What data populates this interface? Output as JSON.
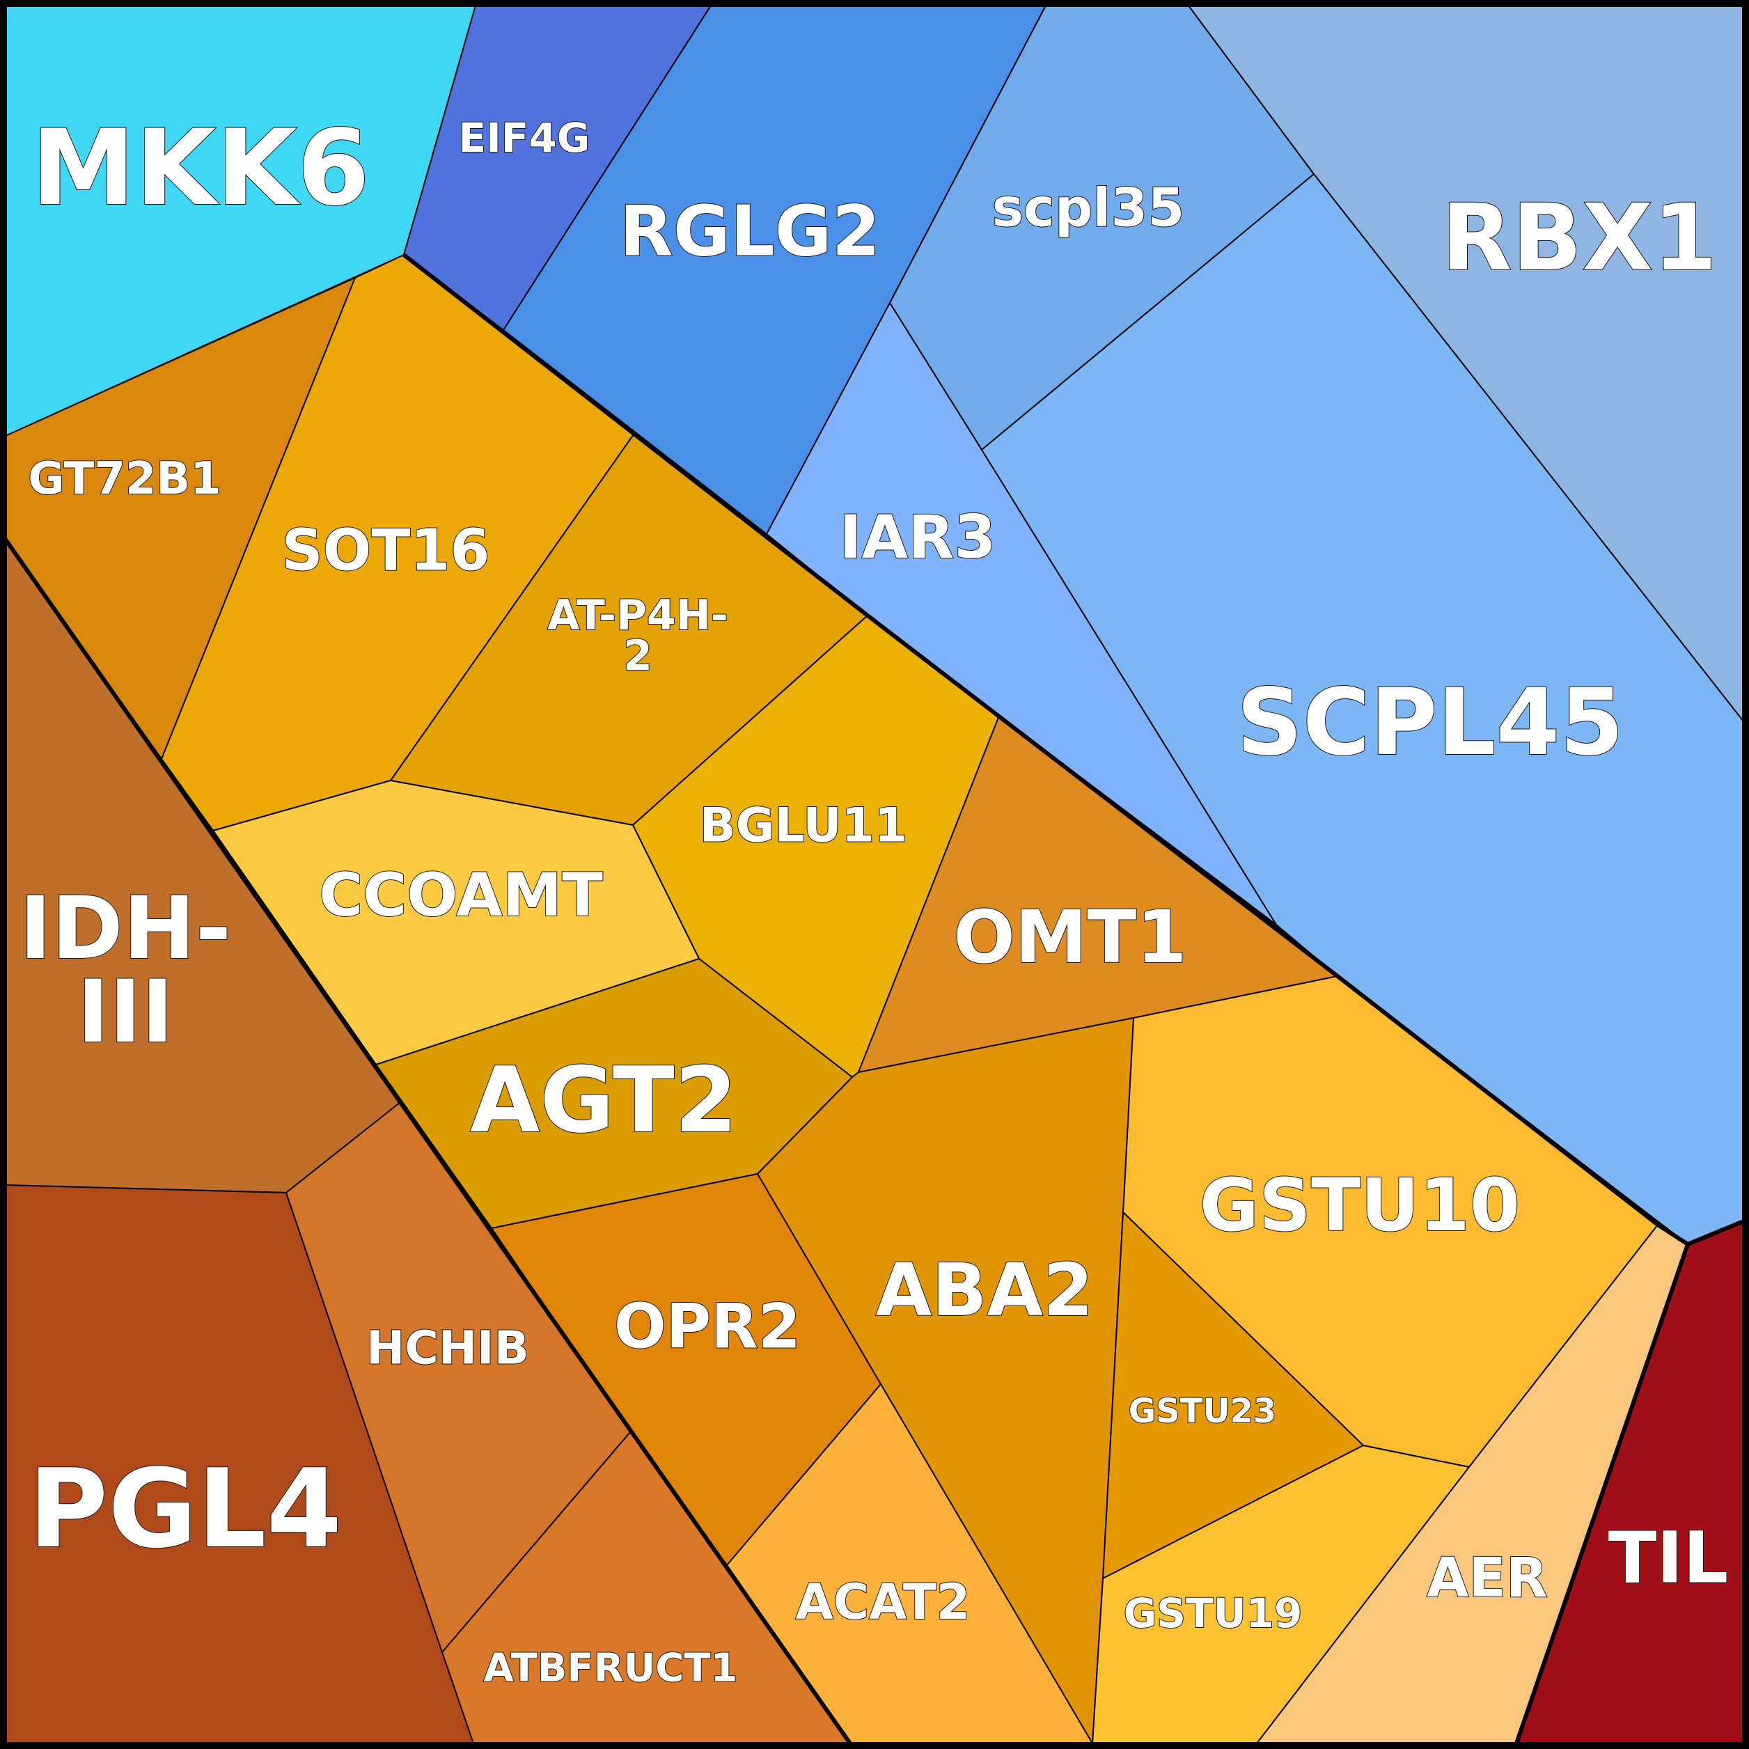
{
  "chart_data": {
    "type": "voronoi-treemap",
    "groups": [
      {
        "name": "",
        "color": "#4a90e2"
      },
      {
        "name": "",
        "color": "#e8a000"
      },
      {
        "name": "",
        "color": "#c06c2b"
      },
      {
        "name": "",
        "color": "#a00f18"
      }
    ],
    "cells": [
      {
        "id": "mkk6",
        "label": "MKK6",
        "color": "#3fd7f3",
        "group": 0
      },
      {
        "id": "eif4g",
        "label": "EIF4G",
        "color": "#4f72dd",
        "group": 0
      },
      {
        "id": "rglg2",
        "label": "RGLG2",
        "color": "#4a90e8",
        "group": 0
      },
      {
        "id": "scpl35",
        "label": "scpl35",
        "color": "#71abeb",
        "group": 0
      },
      {
        "id": "rbx1",
        "label": "RBX1",
        "color": "#8fb5e3",
        "group": 0
      },
      {
        "id": "iar3",
        "label": "IAR3",
        "color": "#80b3fb",
        "group": 0
      },
      {
        "id": "scpl45",
        "label": "SCPL45",
        "color": "#7db6f4",
        "group": 0
      },
      {
        "id": "gt72b1",
        "label": "GT72B1",
        "color": "#d9870d",
        "group": 1
      },
      {
        "id": "sot16",
        "label": "SOT16",
        "color": "#eca806",
        "group": 1
      },
      {
        "id": "atp4h2",
        "label": [
          "AT-P4H-",
          "2"
        ],
        "color": "#e4a104",
        "group": 1
      },
      {
        "id": "bglu11",
        "label": "BGLU11",
        "color": "#ebb105",
        "group": 1
      },
      {
        "id": "ccoamt",
        "label": "CCOAMT",
        "color": "#fdca44",
        "group": 1
      },
      {
        "id": "agt2",
        "label": "AGT2",
        "color": "#db9c00",
        "group": 1
      },
      {
        "id": "omt1",
        "label": "OMT1",
        "color": "#de8b22",
        "group": 1
      },
      {
        "id": "gstu10",
        "label": "GSTU10",
        "color": "#fdbb31",
        "group": 1
      },
      {
        "id": "aba2",
        "label": "ABA2",
        "color": "#e19506",
        "group": 1
      },
      {
        "id": "opr2",
        "label": "OPR2",
        "color": "#e18508",
        "group": 1
      },
      {
        "id": "gstu23",
        "label": "GSTU23",
        "color": "#e49902",
        "group": 1
      },
      {
        "id": "gstu19",
        "label": "GSTU19",
        "color": "#fec132",
        "group": 1
      },
      {
        "id": "acat2",
        "label": "ACAT2",
        "color": "#feb13a",
        "group": 1
      },
      {
        "id": "aer",
        "label": "AER",
        "color": "#fac77f",
        "group": 1
      },
      {
        "id": "idh3",
        "label": [
          "IDH-",
          "III"
        ],
        "color": "#bf6f2b",
        "group": 2
      },
      {
        "id": "pgl4",
        "label": "PGL4",
        "color": "#b04a1a",
        "group": 2
      },
      {
        "id": "hchib",
        "label": "HCHIB",
        "color": "#d4752c",
        "group": 2
      },
      {
        "id": "atbfruct1",
        "label": "ATBFRUCT1",
        "color": "#d87828",
        "group": 2
      },
      {
        "id": "til",
        "label": "TIL",
        "color": "#a00f18",
        "group": 3
      }
    ]
  }
}
